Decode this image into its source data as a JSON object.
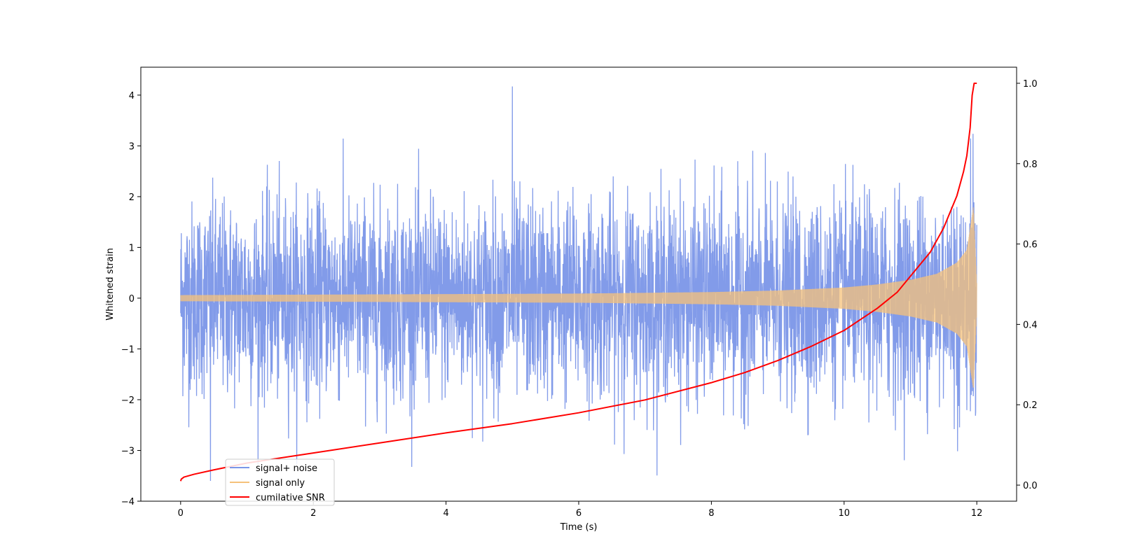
{
  "chart_data": {
    "type": "line",
    "title": "",
    "xlabel": "Time (s)",
    "ylabel": "Whitened strain",
    "y2label": "",
    "xlim": [
      -0.6,
      12.6
    ],
    "ylim": [
      -4.0,
      4.55
    ],
    "y2lim": [
      -0.04,
      1.04
    ],
    "x_ticks": [
      0,
      2,
      4,
      6,
      8,
      10,
      12
    ],
    "y_ticks": [
      -4,
      -3,
      -2,
      -1,
      0,
      1,
      2,
      3,
      4
    ],
    "y2_ticks": [
      0.0,
      0.2,
      0.4,
      0.6,
      0.8,
      1.0
    ],
    "x_tick_labels": [
      "0",
      "2",
      "4",
      "6",
      "8",
      "10",
      "12"
    ],
    "y_tick_labels": [
      "−4",
      "−3",
      "−2",
      "−1",
      "0",
      "1",
      "2",
      "3",
      "4"
    ],
    "y2_tick_labels": [
      "0.0",
      "0.2",
      "0.4",
      "0.6",
      "0.8",
      "1.0"
    ],
    "grid": false,
    "legend_position": "lower-left",
    "series": [
      {
        "name": "signal+ noise",
        "color": "#7b96e8",
        "axis": "left",
        "description_values": {
          "t_start": 0.0,
          "t_end": 12.0,
          "noise_sigma": 0.95,
          "max_value": 4.17,
          "max_at": 5.0,
          "min_value": -3.6,
          "min_at": 0.45
        }
      },
      {
        "name": "signal only",
        "color": "#f5c27a",
        "axis": "left",
        "envelope": {
          "t": [
            0,
            2,
            4,
            6,
            8,
            9,
            10,
            10.5,
            11,
            11.4,
            11.7,
            11.85,
            11.95,
            12.0
          ],
          "amplitude": [
            0.06,
            0.07,
            0.08,
            0.09,
            0.12,
            0.15,
            0.21,
            0.27,
            0.36,
            0.48,
            0.7,
            0.95,
            1.8,
            0.3
          ]
        }
      },
      {
        "name": "cumilative SNR",
        "color": "#ff0000",
        "axis": "right",
        "x": [
          0.0,
          0.01,
          0.05,
          0.2,
          0.5,
          1,
          2,
          3,
          4,
          5,
          6,
          7,
          8,
          8.5,
          9,
          9.5,
          10,
          10.5,
          10.8,
          11,
          11.3,
          11.5,
          11.7,
          11.8,
          11.85,
          11.9,
          11.93,
          11.96,
          12.0
        ],
        "values": [
          0.01,
          0.015,
          0.02,
          0.027,
          0.038,
          0.055,
          0.08,
          0.105,
          0.13,
          0.153,
          0.18,
          0.212,
          0.255,
          0.28,
          0.31,
          0.345,
          0.385,
          0.44,
          0.48,
          0.52,
          0.58,
          0.64,
          0.72,
          0.78,
          0.82,
          0.89,
          0.97,
          1.0,
          1.0
        ]
      }
    ]
  }
}
